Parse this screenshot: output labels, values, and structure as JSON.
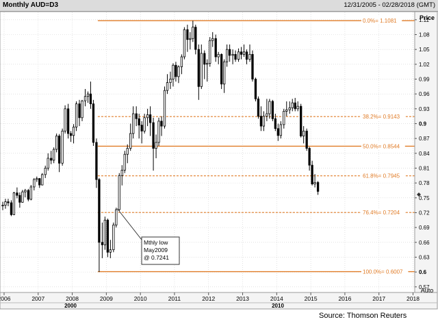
{
  "header": {
    "title": "Monthly AUD=D3",
    "date_range": "12/31/2005 - 02/28/2018 (GMT)"
  },
  "auto_button": "Auto",
  "source": "Source: Thomson Reuters",
  "annotation": {
    "lines": [
      "Mthly low",
      "May2009",
      "@ 0.7241"
    ],
    "target": [
      2009.42,
      0.7241
    ]
  },
  "colors": {
    "fib_line": "#e07b26",
    "candle": "#000000",
    "grid": "#cfcfcf"
  },
  "chart_data": {
    "type": "candlestick",
    "title": "Monthly AUD=D3",
    "ylabel": "Price",
    "xlim": [
      2005.9,
      2018.05
    ],
    "ylim": [
      0.56,
      1.125
    ],
    "grid": true,
    "x_ticks": [
      "2006",
      "2007",
      "2008",
      "2009",
      "2010",
      "2011",
      "2012",
      "2013",
      "2014",
      "2015",
      "2016",
      "2017",
      "2018"
    ],
    "x_ticks_secondary": [
      "2000",
      "2010"
    ],
    "y_ticks": [
      {
        "value": 1.11,
        "label": "1.11"
      },
      {
        "value": 1.08,
        "label": "1.08"
      },
      {
        "value": 1.05,
        "label": "1.05"
      },
      {
        "value": 1.02,
        "label": "1.02"
      },
      {
        "value": 0.99,
        "label": "0.99"
      },
      {
        "value": 0.96,
        "label": "0.96"
      },
      {
        "value": 0.93,
        "label": "0.93"
      },
      {
        "value": 0.9,
        "label": "0.9"
      },
      {
        "value": 0.87,
        "label": "0.87"
      },
      {
        "value": 0.84,
        "label": "0.84"
      },
      {
        "value": 0.81,
        "label": "0.81"
      },
      {
        "value": 0.78,
        "label": "0.78"
      },
      {
        "value": 0.75,
        "label": "0.75"
      },
      {
        "value": 0.72,
        "label": "0.72"
      },
      {
        "value": 0.69,
        "label": "0.69"
      },
      {
        "value": 0.66,
        "label": "0.66"
      },
      {
        "value": 0.63,
        "label": "0.63"
      },
      {
        "value": 0.6,
        "label": "0.6"
      },
      {
        "value": 0.57,
        "label": "0.57"
      }
    ],
    "fib_levels": [
      {
        "label": "0.0%= 1.1081",
        "value": 1.1081,
        "style": "solid",
        "x_start": 2008.75
      },
      {
        "label": "38.2%= 0.9143",
        "value": 0.9143,
        "style": "dashed",
        "x_start": 2008.75
      },
      {
        "label": "50.0%= 0.8544",
        "value": 0.8544,
        "style": "solid",
        "x_start": 2008.75
      },
      {
        "label": "61.8%= 0.7945",
        "value": 0.7945,
        "style": "dashed",
        "x_start": 2008.75
      },
      {
        "label": "76.4%= 0.7204",
        "value": 0.7204,
        "style": "dashed",
        "x_start": 2008.75
      },
      {
        "label": "100.0%= 0.6007",
        "value": 0.6007,
        "style": "solid",
        "x_start": 2008.75
      }
    ],
    "series": [
      {
        "values": [
          {
            "t": 2005.96,
            "o": 0.734,
            "h": 0.742,
            "l": 0.725,
            "c": 0.735
          },
          {
            "t": 2006.04,
            "o": 0.735,
            "h": 0.748,
            "l": 0.728,
            "c": 0.742
          },
          {
            "t": 2006.12,
            "o": 0.742,
            "h": 0.748,
            "l": 0.733,
            "c": 0.74
          },
          {
            "t": 2006.21,
            "o": 0.74,
            "h": 0.745,
            "l": 0.713,
            "c": 0.716
          },
          {
            "t": 2006.29,
            "o": 0.716,
            "h": 0.762,
            "l": 0.715,
            "c": 0.76
          },
          {
            "t": 2006.38,
            "o": 0.76,
            "h": 0.771,
            "l": 0.749,
            "c": 0.755
          },
          {
            "t": 2006.46,
            "o": 0.755,
            "h": 0.761,
            "l": 0.73,
            "c": 0.741
          },
          {
            "t": 2006.54,
            "o": 0.741,
            "h": 0.766,
            "l": 0.74,
            "c": 0.762
          },
          {
            "t": 2006.62,
            "o": 0.762,
            "h": 0.768,
            "l": 0.751,
            "c": 0.765
          },
          {
            "t": 2006.71,
            "o": 0.765,
            "h": 0.768,
            "l": 0.743,
            "c": 0.747
          },
          {
            "t": 2006.79,
            "o": 0.747,
            "h": 0.776,
            "l": 0.745,
            "c": 0.772
          },
          {
            "t": 2006.88,
            "o": 0.772,
            "h": 0.79,
            "l": 0.765,
            "c": 0.787
          },
          {
            "t": 2006.96,
            "o": 0.787,
            "h": 0.793,
            "l": 0.782,
            "c": 0.789
          },
          {
            "t": 2007.04,
            "o": 0.789,
            "h": 0.79,
            "l": 0.77,
            "c": 0.776
          },
          {
            "t": 2007.12,
            "o": 0.776,
            "h": 0.8,
            "l": 0.775,
            "c": 0.797
          },
          {
            "t": 2007.21,
            "o": 0.797,
            "h": 0.815,
            "l": 0.79,
            "c": 0.81
          },
          {
            "t": 2007.29,
            "o": 0.81,
            "h": 0.84,
            "l": 0.805,
            "c": 0.83
          },
          {
            "t": 2007.38,
            "o": 0.83,
            "h": 0.845,
            "l": 0.818,
            "c": 0.826
          },
          {
            "t": 2007.46,
            "o": 0.826,
            "h": 0.852,
            "l": 0.82,
            "c": 0.848
          },
          {
            "t": 2007.54,
            "o": 0.848,
            "h": 0.88,
            "l": 0.842,
            "c": 0.875
          },
          {
            "t": 2007.62,
            "o": 0.875,
            "h": 0.879,
            "l": 0.802,
            "c": 0.82
          },
          {
            "t": 2007.71,
            "o": 0.82,
            "h": 0.89,
            "l": 0.815,
            "c": 0.885
          },
          {
            "t": 2007.79,
            "o": 0.885,
            "h": 0.937,
            "l": 0.88,
            "c": 0.93
          },
          {
            "t": 2007.88,
            "o": 0.93,
            "h": 0.94,
            "l": 0.87,
            "c": 0.88
          },
          {
            "t": 2007.96,
            "o": 0.88,
            "h": 0.885,
            "l": 0.863,
            "c": 0.876
          },
          {
            "t": 2008.04,
            "o": 0.876,
            "h": 0.899,
            "l": 0.86,
            "c": 0.893
          },
          {
            "t": 2008.12,
            "o": 0.893,
            "h": 0.945,
            "l": 0.885,
            "c": 0.94
          },
          {
            "t": 2008.21,
            "o": 0.94,
            "h": 0.948,
            "l": 0.895,
            "c": 0.912
          },
          {
            "t": 2008.29,
            "o": 0.912,
            "h": 0.948,
            "l": 0.905,
            "c": 0.946
          },
          {
            "t": 2008.38,
            "o": 0.946,
            "h": 0.97,
            "l": 0.935,
            "c": 0.955
          },
          {
            "t": 2008.46,
            "o": 0.955,
            "h": 0.965,
            "l": 0.942,
            "c": 0.96
          },
          {
            "t": 2008.54,
            "o": 0.96,
            "h": 0.985,
            "l": 0.93,
            "c": 0.94
          },
          {
            "t": 2008.62,
            "o": 0.94,
            "h": 0.948,
            "l": 0.855,
            "c": 0.862
          },
          {
            "t": 2008.71,
            "o": 0.862,
            "h": 0.87,
            "l": 0.77,
            "c": 0.787
          },
          {
            "t": 2008.79,
            "o": 0.787,
            "h": 0.79,
            "l": 0.6,
            "c": 0.66
          },
          {
            "t": 2008.88,
            "o": 0.66,
            "h": 0.7,
            "l": 0.628,
            "c": 0.655
          },
          {
            "t": 2008.96,
            "o": 0.655,
            "h": 0.712,
            "l": 0.645,
            "c": 0.705
          },
          {
            "t": 2009.04,
            "o": 0.705,
            "h": 0.708,
            "l": 0.63,
            "c": 0.64
          },
          {
            "t": 2009.12,
            "o": 0.64,
            "h": 0.665,
            "l": 0.628,
            "c": 0.645
          },
          {
            "t": 2009.21,
            "o": 0.645,
            "h": 0.7,
            "l": 0.64,
            "c": 0.695
          },
          {
            "t": 2009.29,
            "o": 0.695,
            "h": 0.73,
            "l": 0.69,
            "c": 0.726
          },
          {
            "t": 2009.38,
            "o": 0.726,
            "h": 0.8,
            "l": 0.7241,
            "c": 0.795
          },
          {
            "t": 2009.46,
            "o": 0.795,
            "h": 0.816,
            "l": 0.775,
            "c": 0.806
          },
          {
            "t": 2009.54,
            "o": 0.806,
            "h": 0.845,
            "l": 0.8,
            "c": 0.838
          },
          {
            "t": 2009.62,
            "o": 0.838,
            "h": 0.858,
            "l": 0.82,
            "c": 0.85
          },
          {
            "t": 2009.71,
            "o": 0.85,
            "h": 0.9,
            "l": 0.845,
            "c": 0.88
          },
          {
            "t": 2009.79,
            "o": 0.88,
            "h": 0.935,
            "l": 0.87,
            "c": 0.92
          },
          {
            "t": 2009.88,
            "o": 0.92,
            "h": 0.935,
            "l": 0.895,
            "c": 0.91
          },
          {
            "t": 2009.96,
            "o": 0.91,
            "h": 0.92,
            "l": 0.87,
            "c": 0.897
          },
          {
            "t": 2010.04,
            "o": 0.897,
            "h": 0.905,
            "l": 0.86,
            "c": 0.885
          },
          {
            "t": 2010.12,
            "o": 0.885,
            "h": 0.92,
            "l": 0.88,
            "c": 0.912
          },
          {
            "t": 2010.21,
            "o": 0.912,
            "h": 0.93,
            "l": 0.895,
            "c": 0.918
          },
          {
            "t": 2010.29,
            "o": 0.918,
            "h": 0.935,
            "l": 0.875,
            "c": 0.902
          },
          {
            "t": 2010.38,
            "o": 0.902,
            "h": 0.912,
            "l": 0.805,
            "c": 0.85
          },
          {
            "t": 2010.46,
            "o": 0.85,
            "h": 0.878,
            "l": 0.83,
            "c": 0.862
          },
          {
            "t": 2010.54,
            "o": 0.862,
            "h": 0.912,
            "l": 0.855,
            "c": 0.905
          },
          {
            "t": 2010.62,
            "o": 0.905,
            "h": 0.915,
            "l": 0.875,
            "c": 0.895
          },
          {
            "t": 2010.71,
            "o": 0.895,
            "h": 0.975,
            "l": 0.89,
            "c": 0.967
          },
          {
            "t": 2010.79,
            "o": 0.967,
            "h": 1.0,
            "l": 0.96,
            "c": 0.983
          },
          {
            "t": 2010.88,
            "o": 0.983,
            "h": 1.005,
            "l": 0.97,
            "c": 0.99
          },
          {
            "t": 2010.96,
            "o": 0.99,
            "h": 1.022,
            "l": 0.975,
            "c": 1.018
          },
          {
            "t": 2011.04,
            "o": 1.018,
            "h": 1.025,
            "l": 0.985,
            "c": 0.995
          },
          {
            "t": 2011.12,
            "o": 0.995,
            "h": 1.018,
            "l": 0.982,
            "c": 1.015
          },
          {
            "t": 2011.21,
            "o": 1.015,
            "h": 1.04,
            "l": 1.0,
            "c": 1.035
          },
          {
            "t": 2011.29,
            "o": 1.035,
            "h": 1.095,
            "l": 1.03,
            "c": 1.09
          },
          {
            "t": 2011.38,
            "o": 1.09,
            "h": 1.1,
            "l": 1.045,
            "c": 1.07
          },
          {
            "t": 2011.46,
            "o": 1.07,
            "h": 1.085,
            "l": 1.05,
            "c": 1.072
          },
          {
            "t": 2011.54,
            "o": 1.072,
            "h": 1.1081,
            "l": 1.065,
            "c": 1.095
          },
          {
            "t": 2011.62,
            "o": 1.095,
            "h": 1.1,
            "l": 1.04,
            "c": 1.05
          },
          {
            "t": 2011.71,
            "o": 1.05,
            "h": 1.06,
            "l": 0.948,
            "c": 0.975
          },
          {
            "t": 2011.79,
            "o": 0.975,
            "h": 1.06,
            "l": 0.97,
            "c": 1.042
          },
          {
            "t": 2011.88,
            "o": 1.042,
            "h": 1.048,
            "l": 0.99,
            "c": 1.02
          },
          {
            "t": 2011.96,
            "o": 1.02,
            "h": 1.03,
            "l": 0.985,
            "c": 1.022
          },
          {
            "t": 2012.04,
            "o": 1.022,
            "h": 1.075,
            "l": 1.015,
            "c": 1.068
          },
          {
            "t": 2012.12,
            "o": 1.068,
            "h": 1.085,
            "l": 1.055,
            "c": 1.072
          },
          {
            "t": 2012.21,
            "o": 1.072,
            "h": 1.08,
            "l": 1.025,
            "c": 1.035
          },
          {
            "t": 2012.29,
            "o": 1.035,
            "h": 1.045,
            "l": 1.02,
            "c": 1.04
          },
          {
            "t": 2012.38,
            "o": 1.04,
            "h": 1.042,
            "l": 0.97,
            "c": 0.98
          },
          {
            "t": 2012.46,
            "o": 0.98,
            "h": 1.03,
            "l": 0.962,
            "c": 1.025
          },
          {
            "t": 2012.54,
            "o": 1.025,
            "h": 1.06,
            "l": 1.015,
            "c": 1.05
          },
          {
            "t": 2012.62,
            "o": 1.05,
            "h": 1.06,
            "l": 1.025,
            "c": 1.038
          },
          {
            "t": 2012.71,
            "o": 1.038,
            "h": 1.05,
            "l": 1.02,
            "c": 1.04
          },
          {
            "t": 2012.79,
            "o": 1.04,
            "h": 1.048,
            "l": 1.025,
            "c": 1.03
          },
          {
            "t": 2012.88,
            "o": 1.03,
            "h": 1.052,
            "l": 1.025,
            "c": 1.045
          },
          {
            "t": 2012.96,
            "o": 1.045,
            "h": 1.055,
            "l": 1.03,
            "c": 1.04
          },
          {
            "t": 2013.04,
            "o": 1.04,
            "h": 1.06,
            "l": 1.035,
            "c": 1.045
          },
          {
            "t": 2013.12,
            "o": 1.045,
            "h": 1.05,
            "l": 1.02,
            "c": 1.03
          },
          {
            "t": 2013.21,
            "o": 1.03,
            "h": 1.06,
            "l": 1.025,
            "c": 1.04
          },
          {
            "t": 2013.29,
            "o": 1.04,
            "h": 1.048,
            "l": 0.985,
            "c": 0.99
          },
          {
            "t": 2013.38,
            "o": 0.99,
            "h": 0.993,
            "l": 0.945,
            "c": 0.95
          },
          {
            "t": 2013.46,
            "o": 0.95,
            "h": 0.955,
            "l": 0.91,
            "c": 0.915
          },
          {
            "t": 2013.54,
            "o": 0.915,
            "h": 0.935,
            "l": 0.885,
            "c": 0.895
          },
          {
            "t": 2013.62,
            "o": 0.895,
            "h": 0.925,
            "l": 0.885,
            "c": 0.915
          },
          {
            "t": 2013.71,
            "o": 0.915,
            "h": 0.95,
            "l": 0.905,
            "c": 0.92
          },
          {
            "t": 2013.79,
            "o": 0.92,
            "h": 0.95,
            "l": 0.91,
            "c": 0.945
          },
          {
            "t": 2013.88,
            "o": 0.945,
            "h": 0.948,
            "l": 0.905,
            "c": 0.91
          },
          {
            "t": 2013.96,
            "o": 0.91,
            "h": 0.92,
            "l": 0.885,
            "c": 0.89
          },
          {
            "t": 2014.04,
            "o": 0.89,
            "h": 0.9,
            "l": 0.865,
            "c": 0.876
          },
          {
            "t": 2014.12,
            "o": 0.876,
            "h": 0.905,
            "l": 0.87,
            "c": 0.898
          },
          {
            "t": 2014.21,
            "o": 0.898,
            "h": 0.93,
            "l": 0.89,
            "c": 0.925
          },
          {
            "t": 2014.29,
            "o": 0.925,
            "h": 0.945,
            "l": 0.915,
            "c": 0.928
          },
          {
            "t": 2014.38,
            "o": 0.928,
            "h": 0.945,
            "l": 0.92,
            "c": 0.932
          },
          {
            "t": 2014.46,
            "o": 0.932,
            "h": 0.95,
            "l": 0.925,
            "c": 0.942
          },
          {
            "t": 2014.54,
            "o": 0.942,
            "h": 0.952,
            "l": 0.925,
            "c": 0.93
          },
          {
            "t": 2014.62,
            "o": 0.93,
            "h": 0.945,
            "l": 0.925,
            "c": 0.935
          },
          {
            "t": 2014.71,
            "o": 0.935,
            "h": 0.94,
            "l": 0.872,
            "c": 0.875
          },
          {
            "t": 2014.79,
            "o": 0.875,
            "h": 0.895,
            "l": 0.86,
            "c": 0.885
          },
          {
            "t": 2014.88,
            "o": 0.885,
            "h": 0.89,
            "l": 0.845,
            "c": 0.85
          },
          {
            "t": 2014.96,
            "o": 0.85,
            "h": 0.853,
            "l": 0.805,
            "c": 0.816
          },
          {
            "t": 2015.04,
            "o": 0.816,
            "h": 0.825,
            "l": 0.775,
            "c": 0.778
          },
          {
            "t": 2015.12,
            "o": 0.778,
            "h": 0.798,
            "l": 0.771,
            "c": 0.781
          },
          {
            "t": 2015.21,
            "o": 0.781,
            "h": 0.784,
            "l": 0.756,
            "c": 0.763
          }
        ]
      }
    ]
  }
}
